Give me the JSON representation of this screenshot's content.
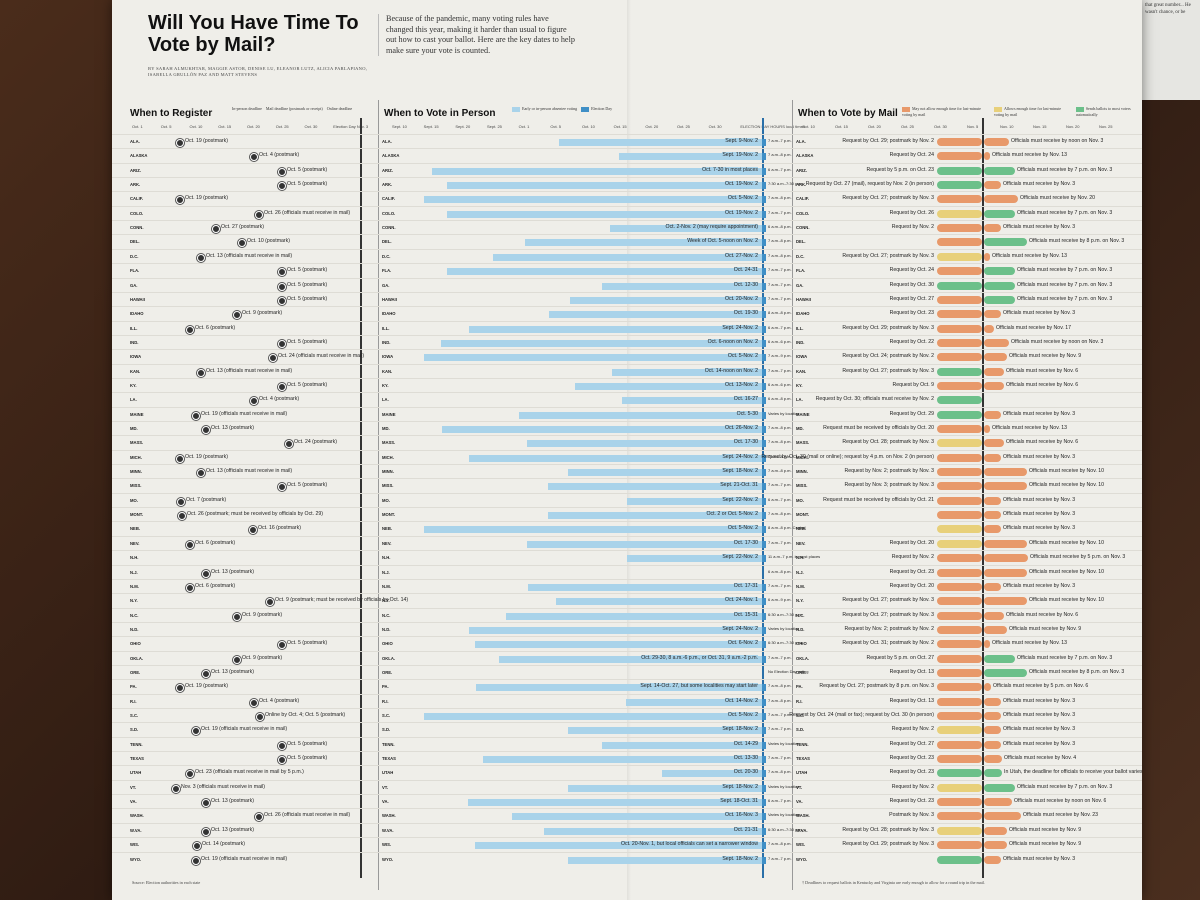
{
  "header": {
    "title": "Will You Have Time To Vote by Mail?",
    "byline": "BY SARAH ALMUKHTAR, MAGGIE ASTOR, DENISE LU, ELEANOR LUTZ, ALICIA PARLAPIANO, ISABELLA GRULLÓN PAZ AND MATT STEVENS",
    "dek": "Because of the pandemic, many voting rules have changed this year, making it harder than usual to figure out how to cast your ballot. Here are the key dates to help make sure your vote is counted."
  },
  "sections": {
    "register": "When to Register",
    "in_person": "When to Vote in Person",
    "mail": "When to Vote by Mail"
  },
  "legends": {
    "register": [
      "In-person deadline",
      "Mail deadline (postmark or receipt)",
      "Online deadline"
    ],
    "in_person": [
      "Early or in-person absentee voting",
      "Election Day"
    ],
    "mail": [
      "May not allow enough time for last-minute voting by mail",
      "Allows enough time for last-minute voting by mail",
      "Sends ballots to most voters automatically"
    ]
  },
  "axes": {
    "register": [
      "Oct. 1",
      "Oct. 5",
      "Oct. 10",
      "Oct. 15",
      "Oct. 20",
      "Oct. 25",
      "Oct. 30",
      "Election Day Nov. 3"
    ],
    "in_person": [
      "Sept. 10",
      "Sept. 15",
      "Sept. 20",
      "Sept. 25",
      "Oct. 1",
      "Oct. 5",
      "Oct. 10",
      "Oct. 15",
      "Oct. 20",
      "Oct. 25",
      "Oct. 30",
      "ELECTION DAY HOURS local times"
    ],
    "mail": [
      "Oct. 10",
      "Oct. 15",
      "Oct. 20",
      "Oct. 25",
      "Oct. 30",
      "Nov. 5",
      "Nov. 10",
      "Nov. 15",
      "Nov. 20",
      "Nov. 25"
    ]
  },
  "rows": [
    {
      "st": "ALA.",
      "reg": "Oct. 19 (postmark)",
      "ip": "Sept. 9-Nov. 2",
      "hrs": "7 a.m.-7 p.m.",
      "req": "Request by Oct. 29; postmark by Nov. 2",
      "rec": "Officials must receive by noon on Nov. 3"
    },
    {
      "st": "ALASKA",
      "reg": "Oct. 4 (postmark)",
      "ip": "Sept. 19-Nov. 2",
      "hrs": "7 a.m.-8 p.m.",
      "req": "Request by Oct. 24",
      "rec": "Officials must receive by Nov. 13"
    },
    {
      "st": "ARIZ.",
      "reg": "Oct. 5 (postmark)",
      "ip": "Oct. 7-30 in most places",
      "hrs": "6 a.m.-7 p.m.",
      "req": "Request by 5 p.m. on Oct. 23",
      "rec": "Officials must receive by 7 p.m. on Nov. 3"
    },
    {
      "st": "ARK.",
      "reg": "Oct. 5 (postmark)",
      "ip": "Oct. 19-Nov. 2",
      "hrs": "7:30 a.m.-7:30 p.m.",
      "req": "Request by Oct. 27 (mail), request by Nov. 2 (in person)",
      "rec": "Officials must receive by Nov. 3"
    },
    {
      "st": "CALIF.",
      "reg": "Oct. 19 (postmark)",
      "ip": "Oct. 5-Nov. 2",
      "hrs": "7 a.m.-8 p.m.",
      "req": "Request by Oct. 27; postmark by Nov. 3",
      "rec": "Officials must receive by Nov. 20"
    },
    {
      "st": "COLO.",
      "reg": "Oct. 26 (officials must receive in mail)",
      "ip": "Oct. 19-Nov. 2",
      "hrs": "7 a.m.-7 p.m.",
      "req": "Request by Oct. 26",
      "rec": "Officials must receive by 7 p.m. on Nov. 3"
    },
    {
      "st": "CONN.",
      "reg": "Oct. 27 (postmark)",
      "ip": "Oct. 2-Nov. 2 (may require appointment)",
      "hrs": "6 a.m.-8 p.m.",
      "req": "Request by Nov. 2",
      "rec": "Officials must receive by Nov. 3"
    },
    {
      "st": "DEL.",
      "reg": "Oct. 10 (postmark)",
      "ip": "Week of Oct. 5-noon on Nov. 2",
      "hrs": "7 a.m.-8 p.m.",
      "req": "",
      "rec": "Officials must receive by 8 p.m. on Nov. 3"
    },
    {
      "st": "D.C.",
      "reg": "Oct. 13 (officials must receive in mail)",
      "ip": "Oct. 27-Nov. 2",
      "hrs": "7 a.m.-8 p.m.",
      "req": "Request by Oct. 27; postmark by Nov. 3",
      "rec": "Officials must receive by Nov. 13"
    },
    {
      "st": "FLA.",
      "reg": "Oct. 5 (postmark)",
      "ip": "Oct. 24-31",
      "hrs": "7 a.m.-7 p.m.",
      "req": "Request by Oct. 24",
      "rec": "Officials must receive by 7 p.m. on Nov. 3"
    },
    {
      "st": "GA.",
      "reg": "Oct. 5 (postmark)",
      "ip": "Oct. 12-30",
      "hrs": "7 a.m.-7 p.m.",
      "req": "Request by Oct. 30",
      "rec": "Officials must receive by 7 p.m. on Nov. 3"
    },
    {
      "st": "HAWAII",
      "reg": "Oct. 5 (postmark)",
      "ip": "Oct. 20-Nov. 2",
      "hrs": "7 a.m.-7 p.m.",
      "req": "Request by Oct. 27",
      "rec": "Officials must receive by 7 p.m. on Nov. 3"
    },
    {
      "st": "IDAHO",
      "reg": "Oct. 9 (postmark)",
      "ip": "Oct. 19-30",
      "hrs": "8 a.m.-8 p.m.",
      "req": "Request by Oct. 23",
      "rec": "Officials must receive by Nov. 3"
    },
    {
      "st": "ILL.",
      "reg": "Oct. 6 (postmark)",
      "ip": "Sept. 24-Nov. 2",
      "hrs": "6 a.m.-7 p.m.",
      "req": "Request by Oct. 29; postmark by Nov. 3",
      "rec": "Officials must receive by Nov. 17"
    },
    {
      "st": "IND.",
      "reg": "Oct. 5 (postmark)",
      "ip": "Oct. 6-noon on Nov. 2",
      "hrs": "6 a.m.-6 p.m.",
      "req": "Request by Oct. 22",
      "rec": "Officials must receive by noon on Nov. 3"
    },
    {
      "st": "IOWA",
      "reg": "Oct. 24 (officials must receive in mail)",
      "ip": "Oct. 5-Nov. 2",
      "hrs": "7 a.m.-9 p.m.",
      "req": "Request by Oct. 24; postmark by Nov. 2",
      "rec": "Officials must receive by Nov. 9"
    },
    {
      "st": "KAN.",
      "reg": "Oct. 13 (officials must receive in mail)",
      "ip": "Oct. 14-noon on Nov. 2",
      "hrs": "7 a.m.-7 p.m.",
      "req": "Request by Oct. 27; postmark by Nov. 3",
      "rec": "Officials must receive by Nov. 6"
    },
    {
      "st": "KY.",
      "reg": "Oct. 5 (postmark)",
      "ip": "Oct. 13-Nov. 2",
      "hrs": "6 a.m.-6 p.m.",
      "req": "Request by Oct. 9",
      "rec": "Officials must receive by Nov. 6"
    },
    {
      "st": "LA.",
      "reg": "Oct. 4 (postmark)",
      "ip": "Oct. 16-27",
      "hrs": "6 a.m.-8 p.m.",
      "req": "Request by Oct. 30; officials must receive by Nov. 2",
      "rec": ""
    },
    {
      "st": "MAINE",
      "reg": "Oct. 19 (officials must receive in mail)",
      "ip": "Oct. 5-30",
      "hrs": "Varies by location",
      "req": "Request by Oct. 29",
      "rec": "Officials must receive by Nov. 3"
    },
    {
      "st": "MD.",
      "reg": "Oct. 13 (postmark)",
      "ip": "Oct. 26-Nov. 2",
      "hrs": "7 a.m.-8 p.m.",
      "req": "Request must be received by officials by Oct. 20",
      "rec": "Officials must receive by Nov. 13"
    },
    {
      "st": "MASS.",
      "reg": "Oct. 24 (postmark)",
      "ip": "Oct. 17-30",
      "hrs": "7 a.m.-8 p.m.",
      "req": "Request by Oct. 28; postmark by Nov. 3",
      "rec": "Officials must receive by Nov. 6"
    },
    {
      "st": "MICH.",
      "reg": "Oct. 19 (postmark)",
      "ip": "Sept. 24-Nov. 2",
      "hrs": "7 a.m.-8 p.m.",
      "req": "Request by Oct. 30 (mail or online); request by 4 p.m. on Nov. 2 (in person)",
      "rec": "Officials must receive by Nov. 3"
    },
    {
      "st": "MINN.",
      "reg": "Oct. 13 (officials must receive in mail)",
      "ip": "Sept. 18-Nov. 2",
      "hrs": "7 a.m.-8 p.m.",
      "req": "Request by Nov. 2; postmark by Nov. 3",
      "rec": "Officials must receive by Nov. 10"
    },
    {
      "st": "MISS.",
      "reg": "Oct. 5 (postmark)",
      "ip": "Sept. 21-Oct. 31",
      "hrs": "7 a.m.-7 p.m.",
      "req": "Request by Nov. 3; postmark by Nov. 3",
      "rec": "Officials must receive by Nov. 10"
    },
    {
      "st": "MO.",
      "reg": "Oct. 7 (postmark)",
      "ip": "Sept. 22-Nov. 2",
      "hrs": "6 a.m.-7 p.m.",
      "req": "Request must be received by officials by Oct. 21",
      "rec": "Officials must receive by Nov. 3"
    },
    {
      "st": "MONT.",
      "reg": "Oct. 26 (postmark; must be received by officials by Oct. 29)",
      "ip": "Oct. 2 or Oct. 5-Nov. 2",
      "hrs": "7 a.m.-8 p.m.",
      "req": "",
      "rec": "Officials must receive by Nov. 3"
    },
    {
      "st": "NEB.",
      "reg": "Oct. 16 (postmark)",
      "ip": "Oct. 5-Nov. 2",
      "hrs": "8 a.m.-8 p.m. Central",
      "req": "",
      "rec": "Officials must receive by Nov. 3"
    },
    {
      "st": "NEV.",
      "reg": "Oct. 6 (postmark)",
      "ip": "Oct. 17-30",
      "hrs": "7 a.m.-7 p.m.",
      "req": "Request by Oct. 20",
      "rec": "Officials must receive by Nov. 10"
    },
    {
      "st": "N.H.",
      "reg": "",
      "ip": "Sept. 22-Nov. 2",
      "hrs": "11 a.m.-7 p.m. in most places",
      "req": "Request by Nov. 2",
      "rec": "Officials must receive by 5 p.m. on Nov. 3"
    },
    {
      "st": "N.J.",
      "reg": "Oct. 13 (postmark)",
      "ip": "",
      "hrs": "6 a.m.-8 p.m.",
      "req": "Request by Oct. 23",
      "rec": "Officials must receive by Nov. 10"
    },
    {
      "st": "N.M.",
      "reg": "Oct. 6 (postmark)",
      "ip": "Oct. 17-31",
      "hrs": "7 a.m.-7 p.m.",
      "req": "Request by Oct. 20",
      "rec": "Officials must receive by Nov. 3"
    },
    {
      "st": "N.Y.",
      "reg": "Oct. 9 (postmark; must be received by officials by Oct. 14)",
      "ip": "Oct. 24-Nov. 1",
      "hrs": "6 a.m.-9 p.m.",
      "req": "Request by Oct. 27; postmark by Nov. 3",
      "rec": "Officials must receive by Nov. 10"
    },
    {
      "st": "N.C.",
      "reg": "Oct. 9 (postmark)",
      "ip": "Oct. 15-31",
      "hrs": "6:30 a.m.-7:30 p.m.",
      "req": "Request by Oct. 27; postmark by Nov. 3",
      "rec": "Officials must receive by Nov. 6"
    },
    {
      "st": "N.D.",
      "reg": "",
      "ip": "Sept. 24-Nov. 2",
      "hrs": "Varies by location",
      "req": "Request by Nov. 2; postmark by Nov. 2",
      "rec": "Officials must receive by Nov. 9"
    },
    {
      "st": "OHIO",
      "reg": "Oct. 5 (postmark)",
      "ip": "Oct. 6-Nov. 2",
      "hrs": "6:30 a.m.-7:30 p.m.",
      "req": "Request by Oct. 31; postmark by Nov. 2",
      "rec": "Officials must receive by Nov. 13"
    },
    {
      "st": "OKLA.",
      "reg": "Oct. 9 (postmark)",
      "ip": "Oct. 29-30, 8 a.m.-6 p.m., or Oct. 31, 9 a.m.-2 p.m.",
      "hrs": "7 a.m.-7 p.m.",
      "req": "Request by 5 p.m. on Oct. 27",
      "rec": "Officials must receive by 7 p.m. on Nov. 3"
    },
    {
      "st": "ORE.",
      "reg": "Oct. 13 (postmark)",
      "ip": "",
      "hrs": "No Election Day voting",
      "req": "Request by Oct. 13",
      "rec": "Officials must receive by 8 p.m. on Nov. 3"
    },
    {
      "st": "PA.",
      "reg": "Oct. 19 (postmark)",
      "ip": "Sept. 14-Oct. 27, but some localities may start later",
      "hrs": "7 a.m.-8 p.m.",
      "req": "Request by Oct. 27; postmark by 8 p.m. on Nov. 3",
      "rec": "Officials must receive by 5 p.m. on Nov. 6"
    },
    {
      "st": "R.I.",
      "reg": "Oct. 4 (postmark)",
      "ip": "Oct. 14-Nov. 2",
      "hrs": "7 a.m.-8 p.m.",
      "req": "Request by Oct. 13",
      "rec": "Officials must receive by Nov. 3"
    },
    {
      "st": "S.C.",
      "reg": "Online by Oct. 4; Oct. 5 (postmark)",
      "ip": "Oct. 5-Nov. 2",
      "hrs": "7 a.m.-7 p.m.",
      "req": "Request by Oct. 24 (mail or fax); request by Oct. 30 (in person)",
      "rec": "Officials must receive by Nov. 3"
    },
    {
      "st": "S.D.",
      "reg": "Oct. 19 (officials must receive in mail)",
      "ip": "Sept. 18-Nov. 2",
      "hrs": "7 a.m.-7 p.m.",
      "req": "Request by Nov. 2",
      "rec": "Officials must receive by Nov. 3"
    },
    {
      "st": "TENN.",
      "reg": "Oct. 5 (postmark)",
      "ip": "Oct. 14-29",
      "hrs": "Varies by location",
      "req": "Request by Oct. 27",
      "rec": "Officials must receive by Nov. 3"
    },
    {
      "st": "TEXAS",
      "reg": "Oct. 5 (postmark)",
      "ip": "Oct. 13-30",
      "hrs": "7 a.m.-7 p.m.",
      "req": "Request by Oct. 23",
      "rec": "Officials must receive by Nov. 4"
    },
    {
      "st": "UTAH",
      "reg": "Oct. 23 (officials must receive in mail by 5 p.m.)",
      "ip": "Oct. 20-30",
      "hrs": "7 a.m.-8 p.m.",
      "req": "Request by Oct. 23",
      "rec": "In Utah, the deadline for officials to receive your ballot varies by location, from as early as Nov. 10 to as late as Nov. 17."
    },
    {
      "st": "VT.",
      "reg": "Nov. 3 (officials must receive in mail)",
      "ip": "Sept. 18-Nov. 2",
      "hrs": "Varies by location",
      "req": "Request by Nov. 2",
      "rec": "Officials must receive by 7 p.m. on Nov. 3"
    },
    {
      "st": "VA.",
      "reg": "Oct. 13 (postmark)",
      "ip": "Sept. 18-Oct. 31",
      "hrs": "6 a.m.-7 p.m.",
      "req": "Request by Oct. 23",
      "rec": "Officials must receive by noon on Nov. 6"
    },
    {
      "st": "WASH.",
      "reg": "Oct. 26 (officials must receive in mail)",
      "ip": "Oct. 16-Nov. 3",
      "hrs": "Varies by location",
      "req": "Postmark by Nov. 3",
      "rec": "Officials must receive by Nov. 23"
    },
    {
      "st": "W.VA.",
      "reg": "Oct. 13 (postmark)",
      "ip": "Oct. 21-31",
      "hrs": "6:30 a.m.-7:30 p.m.",
      "req": "Request by Oct. 28; postmark by Nov. 3",
      "rec": "Officials must receive by Nov. 9"
    },
    {
      "st": "WIS.",
      "reg": "Oct. 14 (postmark)",
      "ip": "Oct. 20-Nov. 1, but local officials can set a narrower window",
      "hrs": "7 a.m.-8 p.m.",
      "req": "Request by Oct. 29; postmark by Nov. 3",
      "rec": "Officials must receive by Nov. 9"
    },
    {
      "st": "WYO.",
      "reg": "Oct. 19 (officials must receive in mail)",
      "ip": "Sept. 18-Nov. 2",
      "hrs": "7 a.m.-7 p.m.",
      "req": "",
      "rec": "Officials must receive by Nov. 3"
    }
  ],
  "footnotes": {
    "source": "Source: Election authorities in each state",
    "mail": "† Deadlines to request ballots in Kentucky and Virginia are early enough to allow for a round trip in the mail."
  },
  "side_snippet": "that great number... He wasn't chance, or be"
}
